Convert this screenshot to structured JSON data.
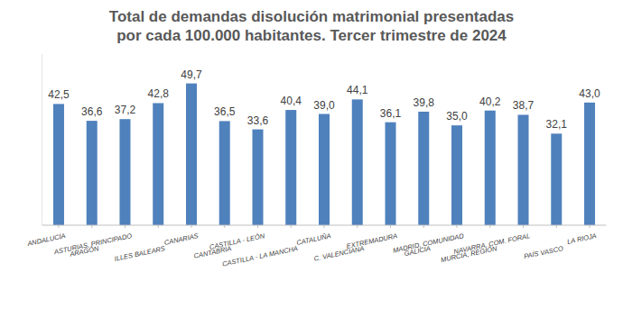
{
  "chart_data": {
    "type": "bar",
    "title": "Total de demandas disolución matrimonial presentadas\npor cada 100.000 habitantes. Tercer trimestre de 2024",
    "categories": [
      "ANDALUCÍA",
      "ARAGÓN",
      "ASTURIAS, PRINCIPADO",
      "ILLES BALEARS",
      "CANARIAS",
      "CANTABRIA",
      "CASTILLA - LEÓN",
      "CASTILLA - LA MANCHA",
      "CATALUÑA",
      "C. VALENCIANA",
      "EXTREMADURA",
      "GALICIA",
      "MADRID, COMUNIDAD",
      "MURCIA, REGIÓN",
      "NAVARRA, COM. FORAL",
      "PAÍS VASCO",
      "LA RIOJA"
    ],
    "values": [
      42.5,
      36.6,
      37.2,
      42.8,
      49.7,
      36.5,
      33.6,
      40.4,
      39.0,
      44.1,
      36.1,
      39.8,
      35.0,
      40.2,
      38.7,
      32.1,
      43.0
    ],
    "value_labels": [
      "42,5",
      "36,6",
      "37,2",
      "42,8",
      "49,7",
      "36,5",
      "33,6",
      "40,4",
      "39,0",
      "44,1",
      "36,1",
      "39,8",
      "35,0",
      "40,2",
      "38,7",
      "32,1",
      "43,0"
    ],
    "color": "#4f81bd",
    "ylim": [
      0,
      60
    ],
    "yticks": [],
    "grid": false,
    "data_labels": true,
    "tick_labels": "x"
  }
}
